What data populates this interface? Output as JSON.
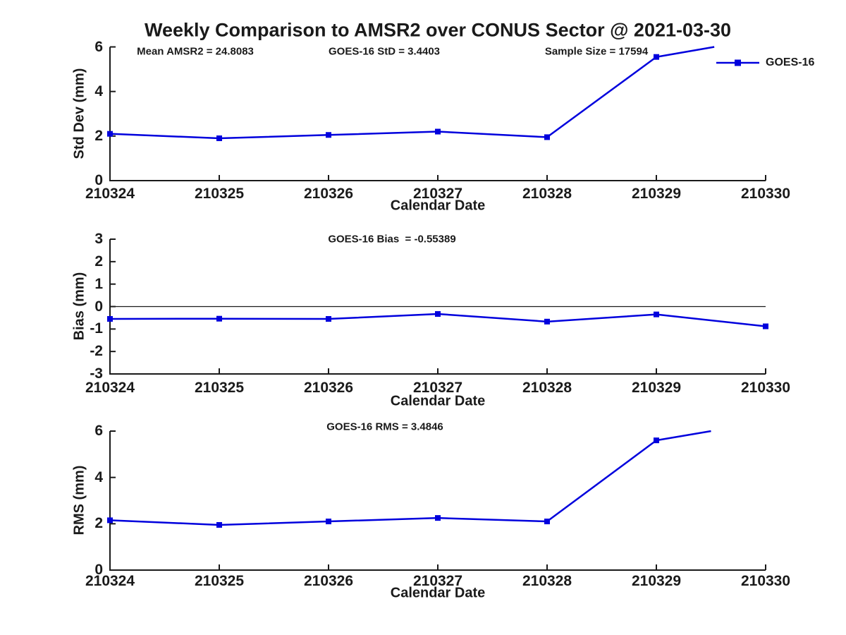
{
  "chart_data": {
    "type": "line",
    "title": "Weekly Comparison to AMSR2 over CONUS Sector @ 2021-03-30",
    "line_color": "#0000dd",
    "axis_color": "#1a1a1a",
    "legend": {
      "position": "top-right",
      "label": "GOES-16"
    },
    "x_range": [
      210324,
      210330
    ],
    "subplots": [
      {
        "name": "std-dev",
        "ylabel": "Std Dev (mm)",
        "xlabel": "Calendar Date",
        "ylim": [
          0,
          6
        ],
        "yticks": [
          "0",
          "2",
          "4",
          "6"
        ],
        "ytick_values": [
          0,
          2,
          4,
          6
        ],
        "xticklabels": [
          "210324",
          "210325",
          "210326",
          "210327",
          "210328",
          "210329",
          "210330"
        ],
        "annotations": [
          "Mean AMSR2 = 24.8083",
          "GOES-16 StD = 3.4403",
          "Sample Size = 17594"
        ],
        "series": [
          {
            "name": "GOES-16",
            "points": [
              [
                210324,
                2.1
              ],
              [
                210325,
                1.9
              ],
              [
                210326,
                2.05
              ],
              [
                210327,
                2.2
              ],
              [
                210328,
                1.95
              ],
              [
                210329,
                5.55
              ]
            ],
            "clip_exit": [
              210329.53,
              6.0
            ]
          }
        ]
      },
      {
        "name": "bias",
        "ylabel": "Bias (mm)",
        "xlabel": "Calendar Date",
        "ylim": [
          -3,
          3
        ],
        "yticks": [
          "-3",
          "-2",
          "-1",
          "0",
          "1",
          "2",
          "3"
        ],
        "ytick_values": [
          -3,
          -2,
          -1,
          0,
          1,
          2,
          3
        ],
        "zero_line": true,
        "xticklabels": [
          "210324",
          "210325",
          "210326",
          "210327",
          "210328",
          "210329",
          "210330"
        ],
        "annotations": [
          "GOES-16 Bias  = -0.55389"
        ],
        "series": [
          {
            "name": "GOES-16",
            "points": [
              [
                210324,
                -0.55
              ],
              [
                210325,
                -0.54
              ],
              [
                210326,
                -0.55
              ],
              [
                210327,
                -0.33
              ],
              [
                210328,
                -0.67
              ],
              [
                210329,
                -0.35
              ],
              [
                210330,
                -0.88
              ]
            ]
          }
        ]
      },
      {
        "name": "rms",
        "ylabel": "RMS (mm)",
        "xlabel": "Calendar Date",
        "ylim": [
          0,
          6
        ],
        "yticks": [
          "0",
          "2",
          "4",
          "6"
        ],
        "ytick_values": [
          0,
          2,
          4,
          6
        ],
        "xticklabels": [
          "210324",
          "210325",
          "210326",
          "210327",
          "210328",
          "210329",
          "210330"
        ],
        "annotations": [
          "GOES-16 RMS = 3.4846"
        ],
        "series": [
          {
            "name": "GOES-16",
            "points": [
              [
                210324,
                2.15
              ],
              [
                210325,
                1.95
              ],
              [
                210326,
                2.1
              ],
              [
                210327,
                2.25
              ],
              [
                210328,
                2.1
              ],
              [
                210329,
                5.6
              ]
            ],
            "clip_exit": [
              210329.5,
              6.0
            ]
          }
        ]
      }
    ]
  }
}
